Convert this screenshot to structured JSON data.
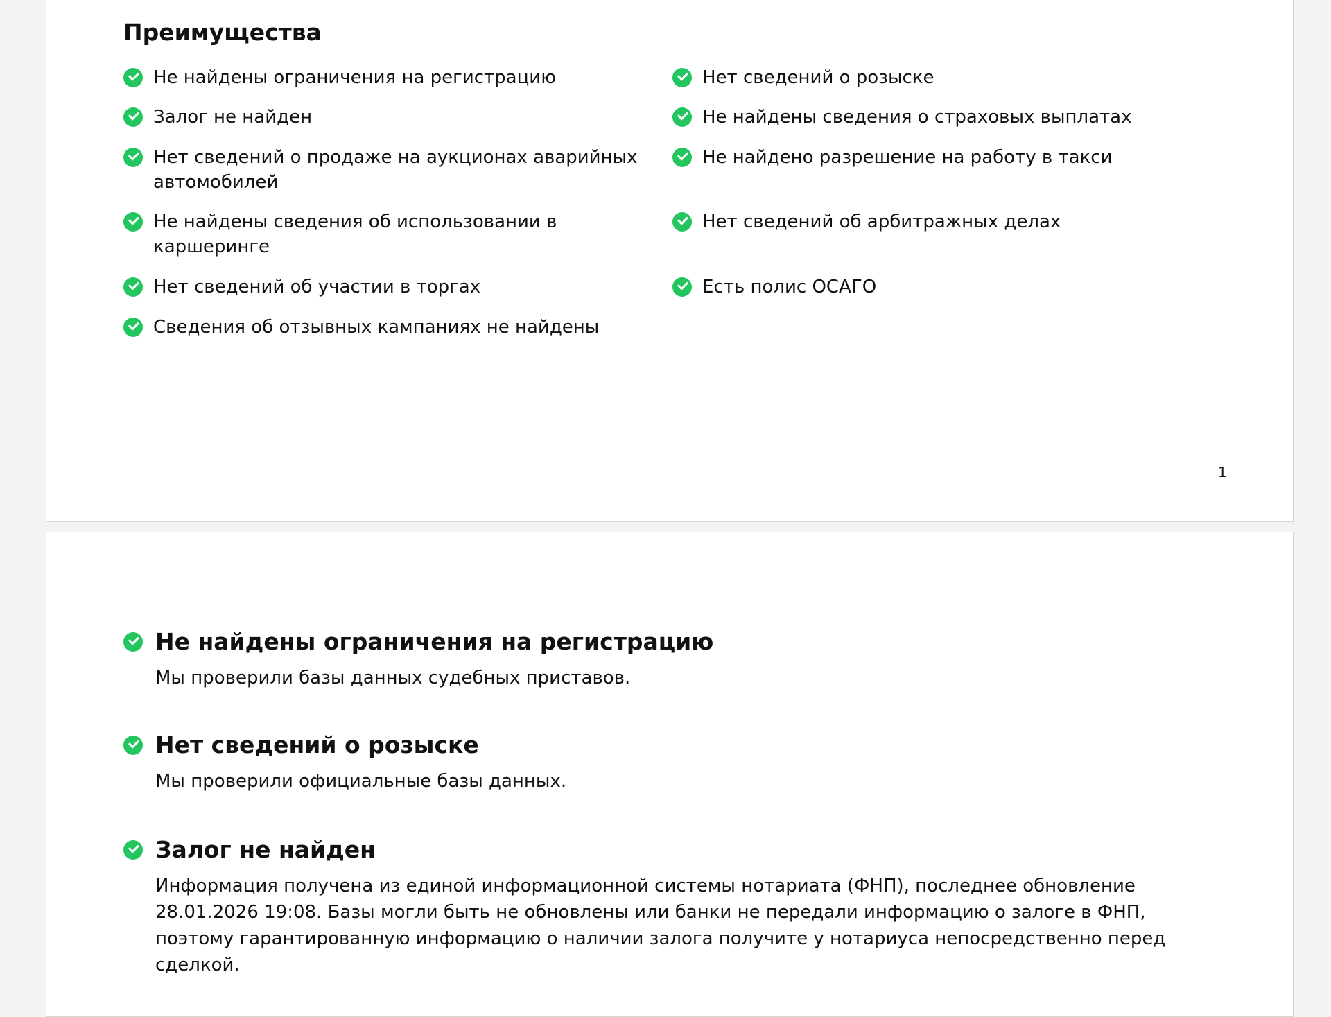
{
  "page1": {
    "heading": "Преимущества",
    "left_items": [
      "Не найдены ограничения на регистрацию",
      "Залог не найден",
      "Нет сведений о продаже на аукционах аварийных автомобилей",
      "Не найдены сведения об использовании в каршеринге",
      "Нет сведений об участии в торгах",
      "Сведения об отзывных кампаниях не найдены"
    ],
    "right_items": [
      "Нет сведений о розыске",
      "Не найдены сведения о страховых выплатах",
      "Не найдено разрешение на работу в такси",
      "Нет сведений об арбитражных делах",
      "Есть полис ОСАГО"
    ],
    "page_number": "1",
    "icon": "check-circle-icon",
    "accent_color": "#22c55e"
  },
  "page2": {
    "sections": [
      {
        "title": "Не найдены ограничения на регистрацию",
        "text": "Мы проверили базы данных судебных приставов."
      },
      {
        "title": "Нет сведений о розыске",
        "text": "Мы проверили официальные базы данных."
      },
      {
        "title": "Залог не найден",
        "text": "Информация получена из единой информационной системы нотариата (ФНП), последнее обновление 28.01.2026 19:08. Базы могли быть не обновлены или банки не передали информацию о залоге в ФНП, поэтому гарантированную информацию о наличии залога получите у нотариуса непосредственно перед сделкой."
      }
    ]
  }
}
